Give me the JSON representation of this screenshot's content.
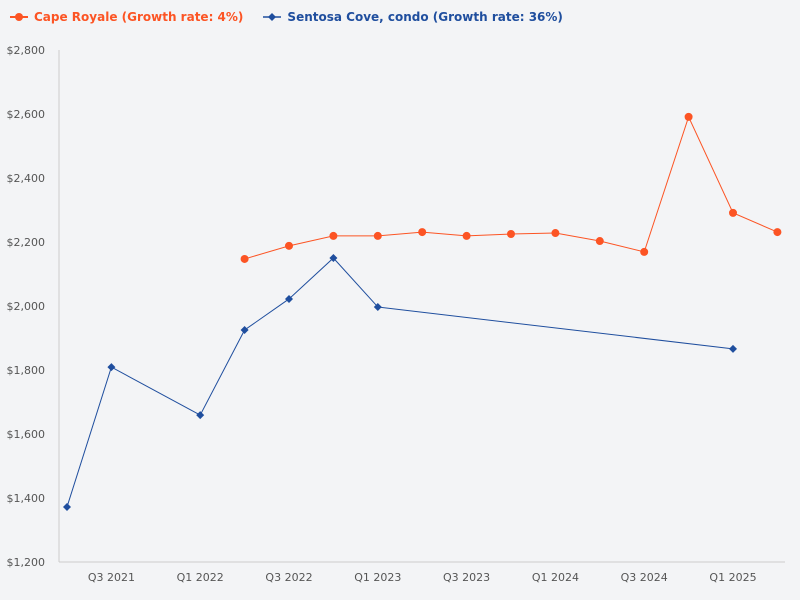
{
  "chart_data": {
    "type": "line",
    "categories": [
      "Q2 2021",
      "Q3 2021",
      "Q4 2021",
      "Q1 2022",
      "Q2 2022",
      "Q3 2022",
      "Q4 2022",
      "Q1 2023",
      "Q2 2023",
      "Q3 2023",
      "Q4 2023",
      "Q1 2024",
      "Q2 2024",
      "Q3 2024",
      "Q4 2024",
      "Q1 2025",
      "Q2 2025"
    ],
    "x_tick_labels": [
      "Q3 2021",
      "Q1 2022",
      "Q3 2022",
      "Q1 2023",
      "Q3 2023",
      "Q1 2024",
      "Q3 2024",
      "Q1 2025"
    ],
    "y_tick_labels": [
      "$1,200",
      "$1,400",
      "$1,600",
      "$1,800",
      "$2,000",
      "$2,200",
      "$2,400",
      "$2,600",
      "$2,800"
    ],
    "ylim": [
      1200,
      2800
    ],
    "grid": false,
    "legend_position": "top-left",
    "series": [
      {
        "name": "Cape Royale (Growth rate: 4%)",
        "color": "#fc5424",
        "marker": "circle",
        "values": [
          null,
          null,
          null,
          null,
          2147,
          2188,
          2219,
          2219,
          2231,
          2219,
          2225,
          2228,
          2203,
          2169,
          2591,
          2291,
          2231
        ]
      },
      {
        "name": "Sentosa Cove, condo (Growth rate: 36%)",
        "color": "#1f4e9e",
        "marker": "diamond",
        "values": [
          1372,
          1809,
          null,
          1659,
          1925,
          2022,
          2150,
          1997,
          null,
          null,
          null,
          null,
          null,
          null,
          null,
          1866,
          null
        ]
      }
    ]
  }
}
